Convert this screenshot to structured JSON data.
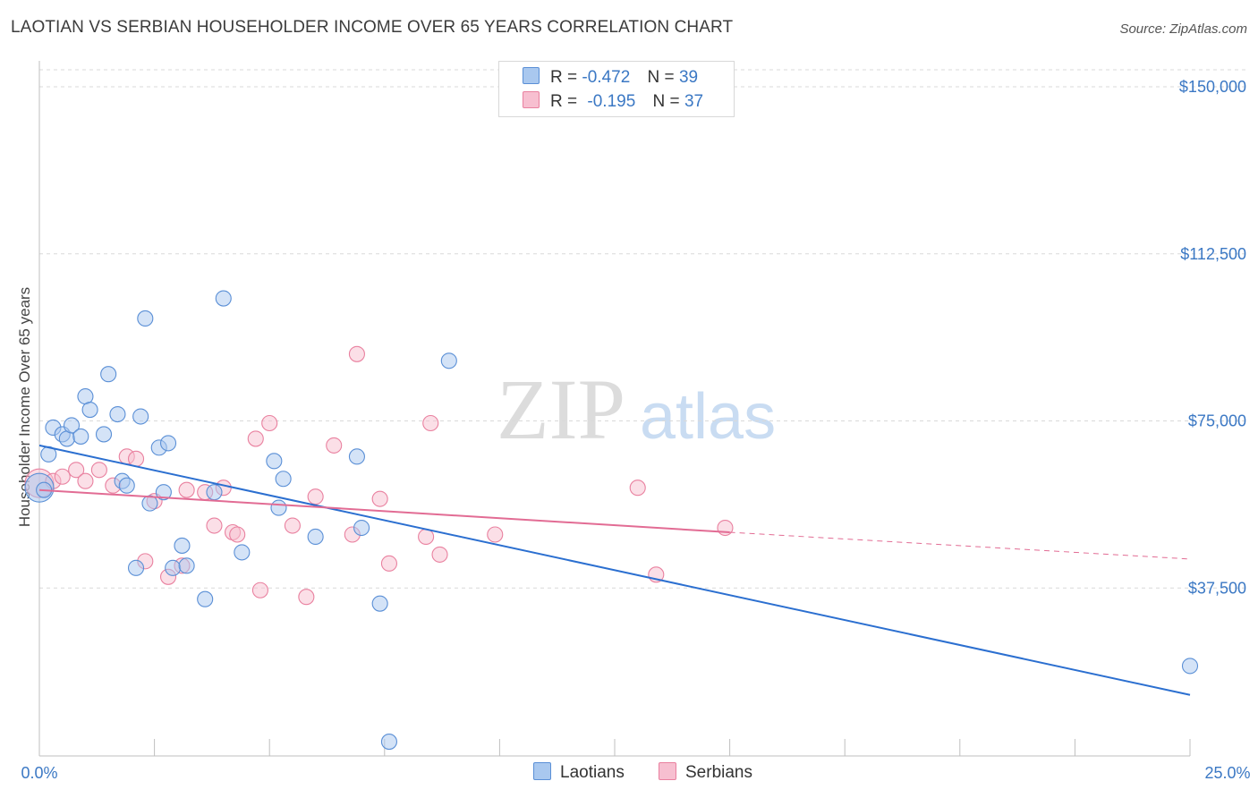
{
  "title": "LAOTIAN VS SERBIAN HOUSEHOLDER INCOME OVER 65 YEARS CORRELATION CHART",
  "source": "Source: ZipAtlas.com",
  "watermark": {
    "zip": "ZIP",
    "atlas": "atlas"
  },
  "legend": {
    "rows": [
      {
        "r_label": "R =",
        "r_value": "-0.472",
        "n_label": "N =",
        "n_value": "39",
        "color": "#a9c8ef",
        "border": "#5a8fd6"
      },
      {
        "r_label": "R =",
        "r_value": "-0.195",
        "n_label": "N =",
        "n_value": "37",
        "color": "#f7bfd0",
        "border": "#e9809f"
      }
    ]
  },
  "bottom_legend": [
    {
      "label": "Laotians",
      "color": "#a9c8ef",
      "border": "#5a8fd6"
    },
    {
      "label": "Serbians",
      "color": "#f7bfd0",
      "border": "#e9809f"
    }
  ],
  "colors": {
    "laotian_fill": "#a9c8ef",
    "laotian_stroke": "#5a8fd6",
    "laotian_line": "#2b6fd0",
    "serbian_fill": "#f7bfd0",
    "serbian_stroke": "#e9809f",
    "serbian_line": "#e26c94",
    "grid": "#d9d9d9",
    "axis_label": "#3b78c4"
  },
  "chart_data": {
    "type": "scatter",
    "title": "LAOTIAN VS SERBIAN HOUSEHOLDER INCOME OVER 65 YEARS CORRELATION CHART",
    "xlabel": "",
    "ylabel": "Householder Income Over 65 years",
    "xlim": [
      0,
      25
    ],
    "ylim": [
      0,
      155000
    ],
    "x_tick_labels": [
      "0.0%",
      "25.0%"
    ],
    "y_ticks": [
      37500,
      75000,
      112500,
      150000
    ],
    "y_tick_labels": [
      "$37,500",
      "$75,000",
      "$112,500",
      "$150,000"
    ],
    "grid": true,
    "legend_position": "top-center",
    "series": [
      {
        "name": "Laotians",
        "r": -0.472,
        "n": 39,
        "points": [
          [
            0.0,
            60000
          ],
          [
            0.2,
            67500
          ],
          [
            0.3,
            73500
          ],
          [
            0.5,
            72000
          ],
          [
            0.6,
            71000
          ],
          [
            0.7,
            74000
          ],
          [
            0.9,
            71500
          ],
          [
            1.0,
            80500
          ],
          [
            1.1,
            77500
          ],
          [
            1.4,
            72000
          ],
          [
            1.5,
            85500
          ],
          [
            1.7,
            76500
          ],
          [
            1.8,
            61500
          ],
          [
            1.9,
            60500
          ],
          [
            2.1,
            42000
          ],
          [
            2.2,
            76000
          ],
          [
            2.3,
            98000
          ],
          [
            2.4,
            56500
          ],
          [
            2.6,
            69000
          ],
          [
            2.7,
            59000
          ],
          [
            2.8,
            70000
          ],
          [
            2.9,
            42000
          ],
          [
            3.1,
            47000
          ],
          [
            3.2,
            42500
          ],
          [
            3.6,
            35000
          ],
          [
            3.8,
            59000
          ],
          [
            4.0,
            102500
          ],
          [
            4.4,
            45500
          ],
          [
            5.1,
            66000
          ],
          [
            5.2,
            55500
          ],
          [
            5.3,
            62000
          ],
          [
            6.0,
            49000
          ],
          [
            6.9,
            67000
          ],
          [
            7.0,
            51000
          ],
          [
            7.4,
            34000
          ],
          [
            7.6,
            3000
          ],
          [
            8.9,
            88500
          ],
          [
            25.0,
            20000
          ],
          [
            0.1,
            59500
          ]
        ],
        "trend": {
          "x": [
            0,
            25
          ],
          "y": [
            69500,
            13500
          ]
        }
      },
      {
        "name": "Serbians",
        "r": -0.195,
        "n": 37,
        "points": [
          [
            0.0,
            61000
          ],
          [
            0.3,
            61500
          ],
          [
            0.5,
            62500
          ],
          [
            0.8,
            64000
          ],
          [
            1.0,
            61500
          ],
          [
            1.3,
            64000
          ],
          [
            1.6,
            60500
          ],
          [
            1.9,
            67000
          ],
          [
            2.1,
            66500
          ],
          [
            2.3,
            43500
          ],
          [
            2.5,
            57000
          ],
          [
            2.8,
            40000
          ],
          [
            3.1,
            42500
          ],
          [
            3.2,
            59500
          ],
          [
            3.6,
            59000
          ],
          [
            3.8,
            51500
          ],
          [
            4.0,
            60000
          ],
          [
            4.2,
            50000
          ],
          [
            4.3,
            49500
          ],
          [
            4.7,
            71000
          ],
          [
            4.8,
            37000
          ],
          [
            5.0,
            74500
          ],
          [
            5.5,
            51500
          ],
          [
            5.8,
            35500
          ],
          [
            6.0,
            58000
          ],
          [
            6.4,
            69500
          ],
          [
            6.8,
            49500
          ],
          [
            6.9,
            90000
          ],
          [
            7.4,
            57500
          ],
          [
            7.6,
            43000
          ],
          [
            8.4,
            49000
          ],
          [
            8.5,
            74500
          ],
          [
            8.7,
            45000
          ],
          [
            9.9,
            49500
          ],
          [
            13.0,
            60000
          ],
          [
            13.4,
            40500
          ],
          [
            14.9,
            51000
          ]
        ],
        "trend": {
          "x": [
            0,
            15
          ],
          "y": [
            59500,
            50000
          ]
        },
        "trend_dashed": {
          "x": [
            15,
            25
          ],
          "y": [
            50000,
            44000
          ]
        }
      }
    ]
  }
}
